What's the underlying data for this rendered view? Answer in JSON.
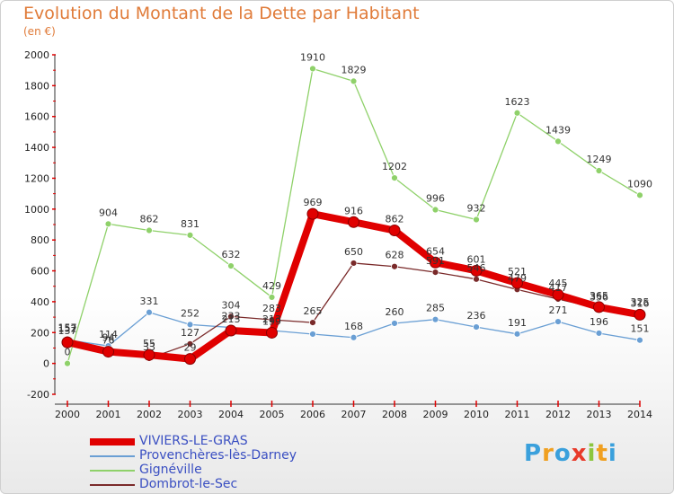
{
  "chart_data": {
    "type": "line",
    "title": "Evolution du Montant de la Dette par Habitant",
    "subtitle": "(en €)",
    "x": [
      "2000",
      "2001",
      "2002",
      "2003",
      "2004",
      "2005",
      "2006",
      "2007",
      "2008",
      "2009",
      "2010",
      "2011",
      "2012",
      "2013",
      "2014"
    ],
    "ylim": [
      -200,
      2000
    ],
    "yticks": [
      "-200",
      "0",
      "200",
      "400",
      "600",
      "800",
      "1000",
      "1200",
      "1400",
      "1600",
      "1800",
      "2000"
    ],
    "grid": false,
    "legend_position": "bottom-left",
    "series": [
      {
        "name": "VIVIERS-LE-GRAS",
        "color": "#e00000",
        "values": [
          137,
          76,
          55,
          29,
          213,
          199,
          969,
          916,
          862,
          654,
          601,
          521,
          445,
          365,
          316
        ],
        "labels": [
          "137",
          "76",
          "55",
          "29",
          "213",
          "199",
          "969",
          "916",
          "862",
          "654",
          "601",
          "521",
          "445",
          "365",
          "316"
        ]
      },
      {
        "name": "Provenchères-lès-Darney",
        "color": "#6a9fd4",
        "values": [
          152,
          114,
          331,
          252,
          233,
          213,
          190,
          168,
          260,
          285,
          236,
          191,
          271,
          196,
          151
        ],
        "labels": [
          "152",
          "114",
          "331",
          "252",
          "233",
          "213",
          "",
          "168",
          "260",
          "285",
          "236",
          "191",
          "271",
          "196",
          "151"
        ]
      },
      {
        "name": "Gignéville",
        "color": "#8fd16a",
        "values": [
          0,
          904,
          862,
          831,
          632,
          429,
          1910,
          1829,
          1202,
          996,
          932,
          1623,
          1439,
          1249,
          1090
        ],
        "labels": [
          "0",
          "904",
          "862",
          "831",
          "632",
          "429",
          "1910",
          "1829",
          "1202",
          "996",
          "932",
          "1623",
          "1439",
          "1249",
          "1090"
        ]
      },
      {
        "name": "Dombrot-le-Sec",
        "color": "#7a2a2a",
        "values": [
          157,
          94,
          33,
          127,
          304,
          283,
          265,
          650,
          628,
          591,
          546,
          479,
          417,
          356,
          325
        ],
        "labels": [
          "157",
          "94",
          "33",
          "127",
          "304",
          "283",
          "265",
          "650",
          "628",
          "591",
          "546",
          "479",
          "417",
          "356",
          "325"
        ]
      }
    ]
  },
  "logo": {
    "letters": [
      "P",
      "r",
      "o",
      "x",
      "i",
      "t",
      "i"
    ],
    "colors": [
      "#3aa0dc",
      "#f0a020",
      "#3aa0dc",
      "#e83a2a",
      "#8cc63f",
      "#f0a020",
      "#3aa0dc"
    ]
  }
}
